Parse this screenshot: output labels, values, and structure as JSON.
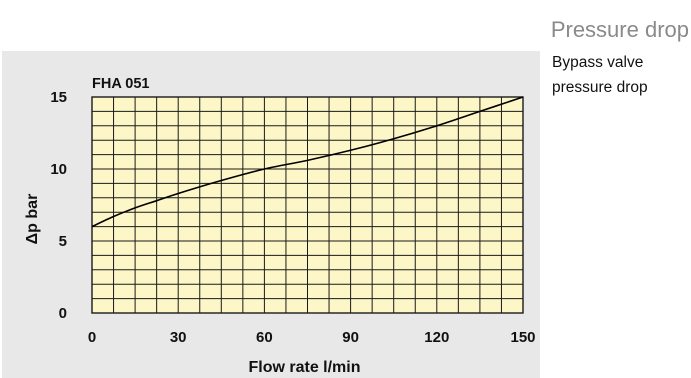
{
  "page": {
    "heading": "Pressure drop",
    "caption_line1": "Bypass valve",
    "caption_line2": "pressure drop"
  },
  "colors": {
    "panel_background": "#e8e8e8",
    "plot_background": "#fdf6c6",
    "grid": "#1a1a1a",
    "curve": "#000000",
    "heading": "#8a8a8a"
  },
  "chart_data": {
    "type": "line",
    "title": "FHA 051",
    "xlabel": "Flow rate l/min",
    "ylabel": "Δp bar",
    "xlim": [
      0,
      150
    ],
    "ylim": [
      0,
      15
    ],
    "xticks": [
      0,
      30,
      60,
      90,
      120,
      150
    ],
    "yticks": [
      0,
      5,
      10,
      15
    ],
    "x_minor_step": 7.5,
    "y_minor_step": 1,
    "grid": true,
    "series": [
      {
        "x": [
          0,
          7.5,
          15,
          22.5,
          30,
          45,
          60,
          75,
          90,
          105,
          120,
          135,
          150
        ],
        "y": [
          6.0,
          6.7,
          7.3,
          7.8,
          8.3,
          9.2,
          10.0,
          10.6,
          11.3,
          12.1,
          13.0,
          14.0,
          15.0
        ]
      }
    ]
  }
}
